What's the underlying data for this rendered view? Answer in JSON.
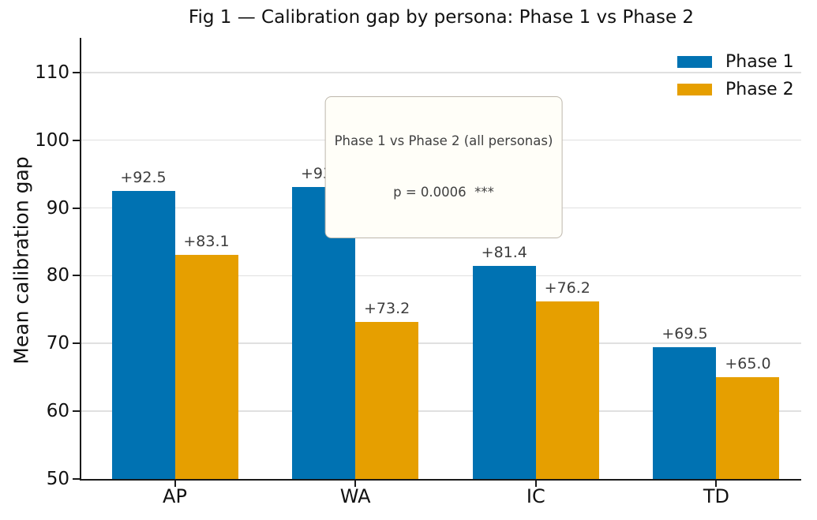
{
  "chart_data": {
    "type": "bar",
    "title": "Fig 1 — Calibration gap by persona: Phase 1 vs Phase 2",
    "xlabel": "",
    "ylabel": "Mean calibration gap",
    "categories": [
      "AP",
      "WA",
      "IC",
      "TD"
    ],
    "series": [
      {
        "name": "Phase 1",
        "color": "#0072B2",
        "values": [
          92.5,
          93.1,
          81.4,
          69.5
        ],
        "bar_labels": [
          "+92.5",
          "+93.1",
          "+81.4",
          "+69.5"
        ]
      },
      {
        "name": "Phase 2",
        "color": "#E69F00",
        "values": [
          83.1,
          73.2,
          76.2,
          65.0
        ],
        "bar_labels": [
          "+83.1",
          "+73.2",
          "+76.2",
          "+65.0"
        ]
      }
    ],
    "ylim": [
      50,
      115.1
    ],
    "yticks": [
      50,
      60,
      70,
      80,
      90,
      100,
      110
    ],
    "grid": "horizontal gridlines on",
    "legend": {
      "position": "upper right",
      "entries": [
        "Phase 1",
        "Phase 2"
      ]
    },
    "annotation": {
      "line1": "Phase 1 vs Phase 2 (all personas)",
      "line2": "p = 0.0006  ***"
    },
    "colors": {
      "phase1": "#0072B2",
      "phase2": "#E69F00",
      "gridline": "#E0E0E0",
      "spine": "#1A1A1A",
      "bar_label_text": "#3D3D3D",
      "annotation_text": "#404040",
      "annotation_border": "#BDB7AC",
      "annotation_background": "#FFFEF8"
    }
  }
}
